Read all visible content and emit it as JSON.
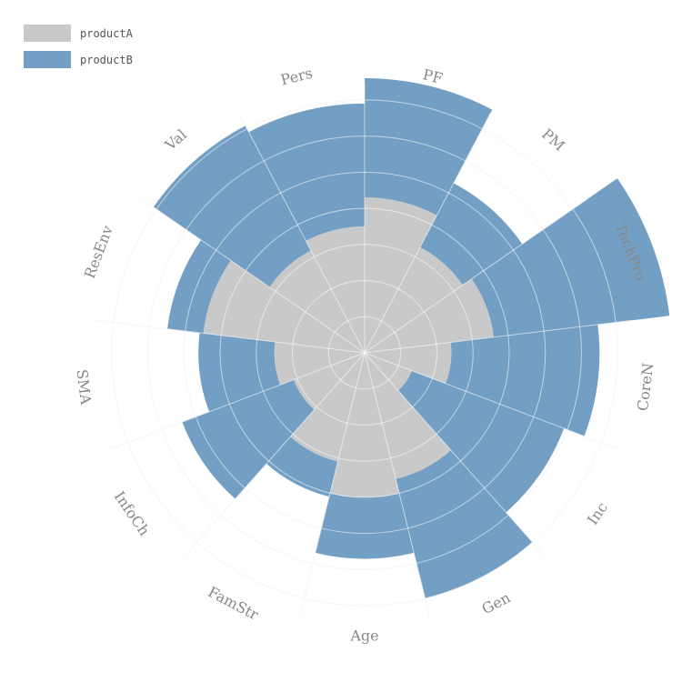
{
  "chart_data": {
    "type": "rose",
    "categories": [
      "PF",
      "PM",
      "TechPro",
      "CoreN",
      "Inc",
      "Gen",
      "Age",
      "FamStr",
      "InfoCh",
      "SMA",
      "ResEnv",
      "Val",
      "Pers"
    ],
    "series": [
      {
        "name": "productA",
        "values": [
          4.3,
          3.3,
          3.6,
          2.4,
          1.4,
          3.6,
          4.0,
          3.1,
          2.1,
          2.5,
          4.5,
          3.2,
          3.5
        ],
        "color": "#c9c9c9"
      },
      {
        "name": "productB",
        "values": [
          3.3,
          2.0,
          4.9,
          4.1,
          4.5,
          3.4,
          1.7,
          1.0,
          3.3,
          2.1,
          1.0,
          3.9,
          3.4
        ],
        "color": "#739fc4"
      }
    ],
    "stacked": true,
    "radial_max": 7.5,
    "ring_step": 1,
    "legend_position": "top-left"
  }
}
